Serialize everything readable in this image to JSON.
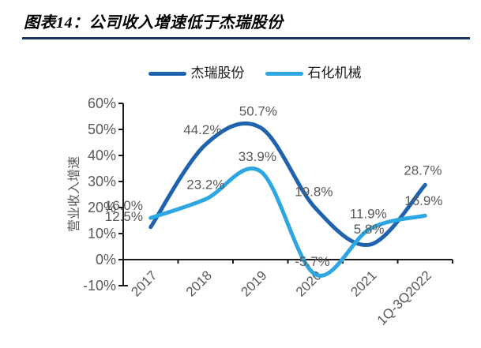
{
  "header": {
    "title": "图表14：公司收入增速低于杰瑞股份",
    "rule_color": "#17375E"
  },
  "chart_data": {
    "type": "line",
    "title": "图表14：公司收入增速低于杰瑞股份",
    "categories": [
      "2017",
      "2018",
      "2019",
      "2020",
      "2021",
      "1Q-3Q2022"
    ],
    "series": [
      {
        "name": "杰瑞股份",
        "color": "#1F63AE",
        "values": [
          12.5,
          44.2,
          50.7,
          19.8,
          5.8,
          28.7
        ],
        "labels": [
          "12.5%",
          "44.2%",
          "50.7%",
          "19.8%",
          "5.8%",
          "28.7%"
        ]
      },
      {
        "name": "石化机械",
        "color": "#2EA6E2",
        "values": [
          16.0,
          23.2,
          33.9,
          -5.7,
          11.9,
          16.9
        ],
        "labels": [
          "16.0%",
          "23.2%",
          "33.9%",
          "-5.7%",
          "11.9%",
          "16.9%"
        ]
      }
    ],
    "xlabel": "",
    "ylabel": "营业收入增速",
    "ylim": [
      -10,
      60
    ],
    "ytick_step": 10,
    "yticks": [
      "60%",
      "50%",
      "40%",
      "30%",
      "20%",
      "10%",
      "0%",
      "-10%"
    ],
    "grid": false,
    "legend_position": "top",
    "smooth": true,
    "data_labels": true,
    "axis_color": "#1A1A1A",
    "tick_label_color": "#595959",
    "data_label_color": "#595959"
  }
}
